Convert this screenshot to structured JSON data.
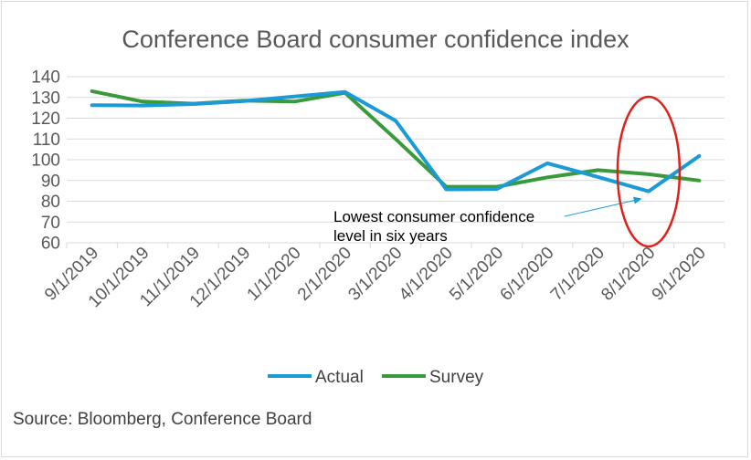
{
  "chart_data": {
    "type": "line",
    "title": "Conference Board consumer confidence index",
    "categories": [
      "9/1/2019",
      "10/1/2019",
      "11/1/2019",
      "12/1/2019",
      "1/1/2020",
      "2/1/2020",
      "3/1/2020",
      "4/1/2020",
      "5/1/2020",
      "6/1/2020",
      "7/1/2020",
      "8/1/2020",
      "9/1/2020"
    ],
    "series": [
      {
        "name": "Actual",
        "color": "#1b9ad6",
        "values": [
          126.3,
          126.1,
          126.8,
          128.2,
          130.4,
          132.6,
          118.8,
          85.7,
          85.9,
          98.3,
          91.7,
          84.8,
          101.8
        ]
      },
      {
        "name": "Survey",
        "color": "#3a9a3a",
        "values": [
          133.0,
          128.0,
          127.0,
          128.5,
          128.0,
          132.2,
          110.0,
          87.0,
          87.0,
          91.5,
          95.0,
          93.0,
          90.0
        ]
      }
    ],
    "yticks": [
      60,
      70,
      80,
      90,
      100,
      110,
      120,
      130,
      140
    ],
    "ylim": [
      60,
      140
    ],
    "grid": true,
    "legend_position": "bottom",
    "annotation": {
      "line1": "Lowest consumer confidence",
      "line2": "level in six years",
      "target_category": "8/1/2020"
    },
    "highlight_color": "#e0201b",
    "source": "Source: Bloomberg, Conference Board"
  }
}
